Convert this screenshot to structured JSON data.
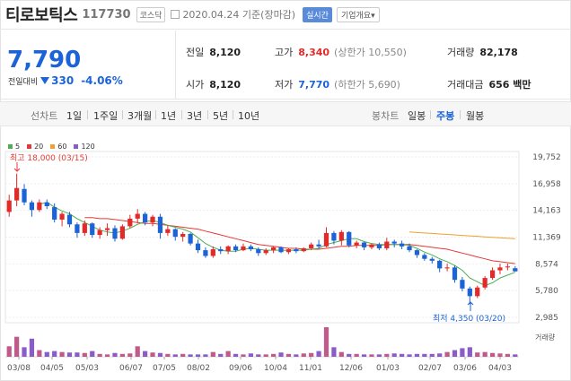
{
  "stock": {
    "name": "티로보틱스",
    "code": "117730",
    "market_badge": "코스닥",
    "date_text": "2020.04.24 기준(장마감)",
    "realtime_label": "실시간",
    "info_button": "기업개요",
    "info_arrow": "▾"
  },
  "quote": {
    "current_price": "7,790",
    "change_label": "전일대비",
    "change_value": "330",
    "change_percent": "-4.06%",
    "prev_close_label": "전일",
    "prev_close": "8,120",
    "open_label": "시가",
    "open": "8,120",
    "high_label": "고가",
    "high": "8,340",
    "upper_limit": "(상한가 10,550)",
    "low_label": "저가",
    "low": "7,770",
    "lower_limit": "(하한가 5,690)",
    "volume_label": "거래량",
    "volume": "82,178",
    "amount_label": "거래대금",
    "amount": "656 백만"
  },
  "chart_tabs": {
    "line_label": "선차트",
    "line_tabs": [
      "1일",
      "1주일",
      "3개월",
      "1년",
      "3년",
      "5년",
      "10년"
    ],
    "candle_label": "봉차트",
    "candle_tabs": [
      "일봉",
      "주봉",
      "월봉"
    ],
    "selected": "주봉"
  },
  "chart_data": {
    "type": "candlestick",
    "legend": [
      {
        "name": "5",
        "color": "#4caf50"
      },
      {
        "name": "20",
        "color": "#e53935"
      },
      {
        "name": "60",
        "color": "#f0a030"
      },
      {
        "name": "120",
        "color": "#8a5cc8"
      }
    ],
    "y_ticks": [
      "19,752",
      "16,958",
      "14,163",
      "11,369",
      "8,574",
      "5,780",
      "2,985"
    ],
    "ylim": [
      2985,
      19752
    ],
    "x_ticks": [
      "03/08",
      "04/05",
      "05/03",
      "06/07",
      "07/05",
      "08/02",
      "09/06",
      "10/04",
      "11/01",
      "12/06",
      "01/03",
      "02/07",
      "03/06",
      "04/03"
    ],
    "high_label": "최고 18,000 (03/15)",
    "low_label": "최저 4,350 (03/20)",
    "volume_label": "거래량",
    "candles": [
      [
        14000,
        15800,
        13500,
        15200
      ],
      [
        15200,
        18000,
        14600,
        16500
      ],
      [
        16400,
        16900,
        14700,
        15000
      ],
      [
        15000,
        15200,
        13500,
        14200
      ],
      [
        14200,
        15300,
        14000,
        15000
      ],
      [
        15000,
        15300,
        14300,
        14600
      ],
      [
        14500,
        14900,
        12900,
        13200
      ],
      [
        13200,
        14000,
        12500,
        13800
      ],
      [
        13700,
        14000,
        12400,
        12700
      ],
      [
        12700,
        12900,
        11300,
        11800
      ],
      [
        11800,
        13100,
        11500,
        12800
      ],
      [
        12800,
        12900,
        11300,
        11600
      ],
      [
        11600,
        12400,
        11200,
        12100
      ],
      [
        12100,
        12800,
        11500,
        12300
      ],
      [
        12300,
        12600,
        10900,
        11200
      ],
      [
        11200,
        12700,
        11100,
        12500
      ],
      [
        12500,
        13700,
        12300,
        13300
      ],
      [
        13300,
        14300,
        12800,
        13800
      ],
      [
        13800,
        14000,
        12600,
        12900
      ],
      [
        12900,
        13700,
        12500,
        13500
      ],
      [
        13500,
        13800,
        11200,
        11800
      ],
      [
        11800,
        12600,
        11500,
        12200
      ],
      [
        12200,
        12300,
        11000,
        11400
      ],
      [
        11400,
        11900,
        10900,
        11700
      ],
      [
        11700,
        11800,
        10500,
        10700
      ],
      [
        10700,
        11100,
        9700,
        10000
      ],
      [
        10000,
        10300,
        9200,
        9400
      ],
      [
        9400,
        10400,
        9200,
        10100
      ],
      [
        10100,
        10400,
        9600,
        9900
      ],
      [
        9900,
        10500,
        9600,
        10400
      ],
      [
        10400,
        10600,
        9800,
        10000
      ],
      [
        10000,
        10700,
        9900,
        10400
      ],
      [
        10400,
        10600,
        9900,
        10100
      ],
      [
        10100,
        10300,
        9400,
        9700
      ],
      [
        9700,
        10200,
        9500,
        10000
      ],
      [
        10000,
        10400,
        9700,
        10300
      ],
      [
        10300,
        10400,
        9700,
        9800
      ],
      [
        9800,
        10200,
        9600,
        10100
      ],
      [
        10100,
        10300,
        9700,
        9900
      ],
      [
        9900,
        10300,
        9800,
        10200
      ],
      [
        10200,
        10800,
        10000,
        10600
      ],
      [
        10600,
        11100,
        10200,
        10400
      ],
      [
        10400,
        12400,
        10300,
        11800
      ],
      [
        11800,
        12000,
        10600,
        11000
      ],
      [
        11000,
        12100,
        10500,
        11900
      ],
      [
        11900,
        12000,
        10300,
        10500
      ],
      [
        10500,
        11000,
        10200,
        10800
      ],
      [
        10800,
        10900,
        10000,
        10300
      ],
      [
        10300,
        10700,
        10100,
        10600
      ],
      [
        10600,
        10800,
        10000,
        10200
      ],
      [
        10200,
        11300,
        10000,
        10900
      ],
      [
        10900,
        11100,
        10300,
        10700
      ],
      [
        10700,
        11000,
        10100,
        10400
      ],
      [
        10400,
        10700,
        9800,
        10000
      ],
      [
        10000,
        10100,
        9200,
        9500
      ],
      [
        9500,
        9700,
        8900,
        9100
      ],
      [
        9100,
        9300,
        8600,
        8900
      ],
      [
        8900,
        9000,
        7700,
        8100
      ],
      [
        8100,
        8600,
        7800,
        8200
      ],
      [
        8200,
        8400,
        6600,
        6900
      ],
      [
        6900,
        7200,
        5700,
        6000
      ],
      [
        6000,
        6200,
        4350,
        5200
      ],
      [
        5200,
        6300,
        5000,
        6100
      ],
      [
        6100,
        7300,
        5900,
        7100
      ],
      [
        7100,
        8200,
        6900,
        7900
      ],
      [
        7900,
        8600,
        7500,
        8200
      ],
      [
        8200,
        8600,
        7900,
        8300
      ],
      [
        8120,
        8340,
        7770,
        7790
      ]
    ],
    "ma5": [
      null,
      null,
      null,
      null,
      14800,
      15000,
      14500,
      14100,
      13800,
      13300,
      12900,
      12500,
      12100,
      11900,
      11800,
      12000,
      12300,
      12700,
      13000,
      13100,
      12900,
      12600,
      12400,
      12200,
      11900,
      11300,
      10700,
      10300,
      10000,
      9900,
      9900,
      10100,
      10200,
      10100,
      10000,
      10000,
      10000,
      9990,
      10000,
      10000,
      10100,
      10200,
      10600,
      10800,
      11000,
      11200,
      11200,
      10900,
      10700,
      10600,
      10600,
      10600,
      10600,
      10500,
      10200,
      9800,
      9500,
      9100,
      8800,
      8400,
      7900,
      7100,
      6700,
      6300,
      6600,
      7100,
      7400,
      7700
    ],
    "ma20": [
      null,
      null,
      null,
      null,
      null,
      null,
      null,
      null,
      null,
      null,
      13400,
      13400,
      13300,
      13300,
      13200,
      13100,
      13000,
      12900,
      12800,
      12800,
      12700,
      12600,
      12500,
      12400,
      12300,
      12200,
      12000,
      11800,
      11600,
      11400,
      11200,
      11000,
      10800,
      10600,
      10500,
      10400,
      10300,
      10200,
      10200,
      10100,
      10100,
      10100,
      10200,
      10300,
      10400,
      10400,
      10500,
      10500,
      10500,
      10500,
      10600,
      10600,
      10600,
      10600,
      10500,
      10400,
      10300,
      10200,
      10100,
      9900,
      9700,
      9500,
      9300,
      9100,
      8900,
      8800,
      8700,
      8600
    ],
    "ma60": [
      null,
      null,
      null,
      null,
      null,
      null,
      null,
      null,
      null,
      null,
      null,
      null,
      null,
      null,
      null,
      null,
      null,
      null,
      null,
      null,
      null,
      null,
      null,
      null,
      null,
      null,
      null,
      null,
      null,
      null,
      null,
      null,
      null,
      null,
      null,
      null,
      null,
      null,
      null,
      null,
      null,
      null,
      null,
      null,
      null,
      null,
      null,
      null,
      null,
      null,
      null,
      null,
      null,
      11900,
      11850,
      11800,
      11750,
      11700,
      11650,
      11600,
      11550,
      11500,
      11450,
      11400,
      11350,
      11300,
      11250,
      11200
    ],
    "volumes": [
      22,
      42,
      20,
      38,
      14,
      10,
      12,
      10,
      9,
      9,
      8,
      12,
      6,
      5,
      8,
      6,
      7,
      22,
      12,
      9,
      8,
      6,
      5,
      6,
      5,
      5,
      5,
      10,
      6,
      12,
      6,
      5,
      7,
      5,
      5,
      6,
      9,
      6,
      5,
      7,
      8,
      12,
      62,
      20,
      10,
      6,
      6,
      5,
      5,
      5,
      6,
      7,
      6,
      5,
      6,
      6,
      6,
      7,
      10,
      14,
      18,
      20,
      9,
      10,
      8,
      7,
      6,
      5
    ],
    "volume_max": 62
  }
}
